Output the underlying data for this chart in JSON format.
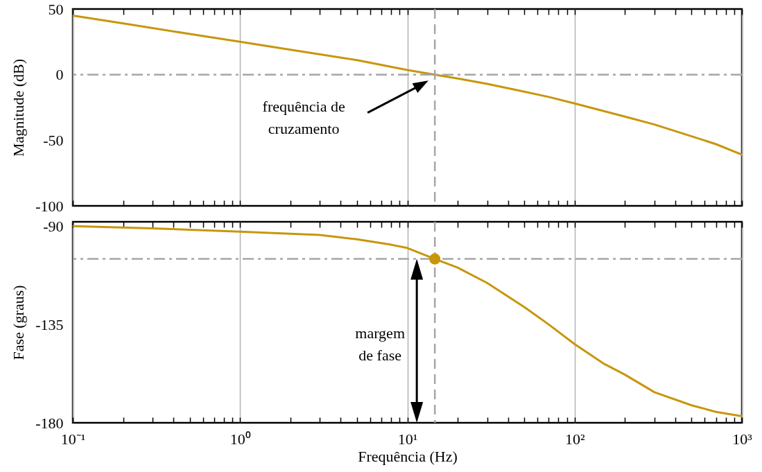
{
  "chart_data": [
    {
      "type": "line",
      "ylabel": "Magnitude (dB)",
      "series": [
        {
          "color": "#c8960c",
          "x": [
            0.1,
            0.2,
            0.5,
            1,
            2,
            5,
            10,
            14.6,
            20,
            30,
            50,
            70,
            100,
            200,
            300,
            500,
            700,
            1000
          ],
          "values": [
            45,
            39,
            31,
            25,
            19,
            11,
            3.5,
            0,
            -3,
            -7,
            -13,
            -17,
            -22,
            -32,
            -38,
            -47,
            -53,
            -61
          ]
        }
      ],
      "xlim": [
        0.1,
        1000
      ],
      "ylim": [
        -100,
        50
      ],
      "yticks": [
        -100,
        -50,
        0,
        50
      ],
      "xticks": [
        {
          "value": 0.1,
          "label": null
        },
        {
          "value": 0.2,
          "label": null
        },
        {
          "value": 0.3,
          "label": null
        },
        {
          "value": 0.4,
          "label": null
        },
        {
          "value": 0.5,
          "label": null
        },
        {
          "value": 0.6,
          "label": null
        },
        {
          "value": 0.7,
          "label": null
        },
        {
          "value": 0.8,
          "label": null
        },
        {
          "value": 0.9,
          "label": null
        },
        {
          "value": 1,
          "label": null
        },
        {
          "value": 2,
          "label": null
        },
        {
          "value": 3,
          "label": null
        },
        {
          "value": 4,
          "label": null
        },
        {
          "value": 5,
          "label": null
        },
        {
          "value": 6,
          "label": null
        },
        {
          "value": 7,
          "label": null
        },
        {
          "value": 8,
          "label": null
        },
        {
          "value": 9,
          "label": null
        },
        {
          "value": 10,
          "label": null
        },
        {
          "value": 20,
          "label": null
        },
        {
          "value": 30,
          "label": null
        },
        {
          "value": 40,
          "label": null
        },
        {
          "value": 50,
          "label": null
        },
        {
          "value": 60,
          "label": null
        },
        {
          "value": 70,
          "label": null
        },
        {
          "value": 80,
          "label": null
        },
        {
          "value": 90,
          "label": null
        },
        {
          "value": 100,
          "label": null
        },
        {
          "value": 200,
          "label": null
        },
        {
          "value": 300,
          "label": null
        },
        {
          "value": 400,
          "label": null
        },
        {
          "value": 500,
          "label": null
        },
        {
          "value": 600,
          "label": null
        },
        {
          "value": 700,
          "label": null
        },
        {
          "value": 800,
          "label": null
        },
        {
          "value": 900,
          "label": null
        },
        {
          "value": 1000,
          "label": null
        }
      ],
      "log": "x",
      "grid": "x",
      "tick_labels": "y",
      "ref_lines": [
        {
          "axis": "y",
          "value": 0,
          "color": "#a6a6a6",
          "line_style": "dashed"
        },
        {
          "axis": "x",
          "value": 14.6,
          "color": "#a6a6a6",
          "line_style": "dashed"
        }
      ],
      "annotations": [
        "frequência de cruzamento"
      ]
    },
    {
      "type": "line",
      "ylabel": "Fase (graus)",
      "xlabel": "Frequência (Hz)",
      "series": [
        {
          "color": "#c8960c",
          "x": [
            0.1,
            0.3,
            1,
            3,
            5,
            8,
            10,
            14.6,
            20,
            30,
            50,
            70,
            100,
            150,
            200,
            300,
            500,
            700,
            1000
          ],
          "values": [
            -90,
            -91,
            -92.5,
            -94,
            -96,
            -98.5,
            -100,
            -105,
            -109,
            -116,
            -127,
            -135,
            -144,
            -153,
            -158,
            -166,
            -172,
            -175,
            -177
          ]
        },
        {
          "type": "scatter",
          "marker": "circle",
          "color": "#c8960c",
          "x": [
            14.6
          ],
          "values": [
            -105
          ]
        }
      ],
      "xlim": [
        0.1,
        1000
      ],
      "ylim": [
        -180,
        -88
      ],
      "yticks": [
        -180,
        -135,
        -90
      ],
      "xticks": [
        {
          "value": 0.1,
          "label": "10⁻¹"
        },
        {
          "value": 0.2,
          "label": null
        },
        {
          "value": 0.3,
          "label": null
        },
        {
          "value": 0.4,
          "label": null
        },
        {
          "value": 0.5,
          "label": null
        },
        {
          "value": 0.6,
          "label": null
        },
        {
          "value": 0.7,
          "label": null
        },
        {
          "value": 0.8,
          "label": null
        },
        {
          "value": 0.9,
          "label": null
        },
        {
          "value": 1,
          "label": "10⁰"
        },
        {
          "value": 2,
          "label": null
        },
        {
          "value": 3,
          "label": null
        },
        {
          "value": 4,
          "label": null
        },
        {
          "value": 5,
          "label": null
        },
        {
          "value": 6,
          "label": null
        },
        {
          "value": 7,
          "label": null
        },
        {
          "value": 8,
          "label": null
        },
        {
          "value": 9,
          "label": null
        },
        {
          "value": 10,
          "label": "10¹"
        },
        {
          "value": 20,
          "label": null
        },
        {
          "value": 30,
          "label": null
        },
        {
          "value": 40,
          "label": null
        },
        {
          "value": 50,
          "label": null
        },
        {
          "value": 60,
          "label": null
        },
        {
          "value": 70,
          "label": null
        },
        {
          "value": 80,
          "label": null
        },
        {
          "value": 90,
          "label": null
        },
        {
          "value": 100,
          "label": "10²"
        },
        {
          "value": 200,
          "label": null
        },
        {
          "value": 300,
          "label": null
        },
        {
          "value": 400,
          "label": null
        },
        {
          "value": 500,
          "label": null
        },
        {
          "value": 600,
          "label": null
        },
        {
          "value": 700,
          "label": null
        },
        {
          "value": 800,
          "label": null
        },
        {
          "value": 900,
          "label": null
        },
        {
          "value": 1000,
          "label": "10³"
        }
      ],
      "log": "x",
      "grid": "x",
      "ref_lines": [
        {
          "axis": "y",
          "value": -105,
          "color": "#a6a6a6",
          "line_style": "dashed"
        },
        {
          "axis": "x",
          "value": 14.6,
          "color": "#a6a6a6",
          "line_style": "dashed"
        }
      ],
      "annotations": [
        "margem de fase"
      ]
    }
  ]
}
